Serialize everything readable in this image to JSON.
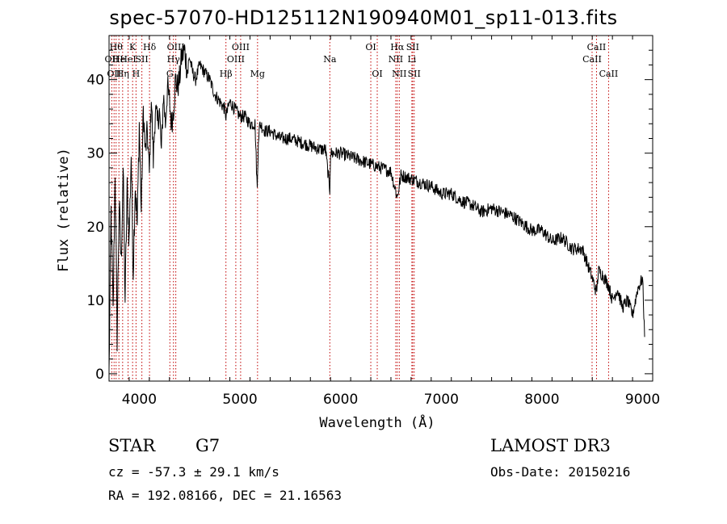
{
  "chart_data": {
    "type": "line",
    "title": "spec-57070-HD125112N190940M01_sp11-013.fits",
    "xlabel": "Wavelength (Å)",
    "ylabel": "Flux (relative)",
    "xlim": [
      3700,
      9100
    ],
    "ylim": [
      -1,
      46
    ],
    "xticks": [
      4000,
      5000,
      6000,
      7000,
      8000,
      9000
    ],
    "yticks": [
      0,
      10,
      20,
      30,
      40
    ],
    "series": [
      {
        "name": "flux",
        "x": [
          3700,
          3720,
          3740,
          3760,
          3780,
          3800,
          3820,
          3840,
          3860,
          3880,
          3900,
          3920,
          3940,
          3960,
          3980,
          4000,
          4020,
          4040,
          4060,
          4080,
          4100,
          4120,
          4140,
          4160,
          4180,
          4200,
          4220,
          4240,
          4260,
          4280,
          4300,
          4320,
          4340,
          4360,
          4380,
          4400,
          4420,
          4450,
          4480,
          4500,
          4530,
          4560,
          4600,
          4650,
          4700,
          4750,
          4800,
          4850,
          4861,
          4900,
          4950,
          5000,
          5050,
          5100,
          5150,
          5172,
          5183,
          5200,
          5250,
          5300,
          5400,
          5500,
          5600,
          5700,
          5800,
          5850,
          5893,
          5900,
          6000,
          6100,
          6200,
          6300,
          6400,
          6500,
          6563,
          6600,
          6700,
          6800,
          6900,
          7000,
          7100,
          7200,
          7300,
          7400,
          7500,
          7600,
          7700,
          7800,
          7900,
          8000,
          8100,
          8200,
          8300,
          8400,
          8450,
          8500,
          8542,
          8560,
          8600,
          8662,
          8700,
          8750,
          8800,
          8850,
          8900,
          8950,
          9000,
          9020
        ],
        "y": [
          0,
          22,
          8,
          28,
          5,
          23,
          15,
          28,
          10,
          25,
          18,
          30,
          14,
          26,
          20,
          34,
          22,
          36,
          30,
          33,
          27,
          38,
          29,
          36,
          34,
          36,
          30,
          38,
          34,
          39,
          37,
          34,
          36,
          40,
          39,
          40,
          43,
          44,
          41,
          43,
          41,
          40,
          42,
          41,
          40,
          38,
          37,
          36,
          35,
          37,
          36,
          35,
          35,
          34,
          34,
          25,
          32,
          34,
          33,
          33,
          32,
          32,
          31.5,
          31,
          30.5,
          30.5,
          25,
          30,
          30,
          29.5,
          29,
          28.5,
          28,
          27.5,
          24,
          27,
          26.5,
          26,
          25.5,
          24.5,
          24.5,
          23.5,
          23,
          22,
          22.5,
          22,
          21.5,
          20.5,
          19.5,
          19.5,
          18,
          18.5,
          17,
          17,
          15,
          13,
          11,
          14,
          13.5,
          12,
          10,
          11.5,
          9,
          10,
          8,
          11.5,
          13,
          5
        ]
      }
    ],
    "lines": [
      {
        "wl": 3727,
        "label": "OII",
        "row": 2
      },
      {
        "wl": 3750,
        "label": "OII",
        "row": 3
      },
      {
        "wl": 3770,
        "label": "Hθ",
        "row": 1
      },
      {
        "wl": 3798,
        "label": "He",
        "row": 2
      },
      {
        "wl": 3835,
        "label": "Hη",
        "row": 3
      },
      {
        "wl": 3889,
        "label": "HeI",
        "row": 2
      },
      {
        "wl": 3934,
        "label": "K",
        "row": 1
      },
      {
        "wl": 3968,
        "label": "H",
        "row": 3
      },
      {
        "wl": 4026,
        "label": "SII",
        "row": 2
      },
      {
        "wl": 4102,
        "label": "Hδ",
        "row": 1
      },
      {
        "wl": 4304,
        "label": "G",
        "row": 3
      },
      {
        "wl": 4340,
        "label": "Hγ",
        "row": 2
      },
      {
        "wl": 4363,
        "label": "OIII",
        "row": 1
      },
      {
        "wl": 4861,
        "label": "Hβ",
        "row": 3
      },
      {
        "wl": 4959,
        "label": "OIII",
        "row": 2
      },
      {
        "wl": 5007,
        "label": "OIII",
        "row": 1
      },
      {
        "wl": 5175,
        "label": "Mg",
        "row": 3
      },
      {
        "wl": 5893,
        "label": "Na",
        "row": 2
      },
      {
        "wl": 6300,
        "label": "OI",
        "row": 1
      },
      {
        "wl": 6364,
        "label": "OI",
        "row": 3
      },
      {
        "wl": 6548,
        "label": "NII",
        "row": 2
      },
      {
        "wl": 6563,
        "label": "Hα",
        "row": 1
      },
      {
        "wl": 6583,
        "label": "NII",
        "row": 3
      },
      {
        "wl": 6708,
        "label": "Li",
        "row": 2
      },
      {
        "wl": 6716,
        "label": "SII",
        "row": 1
      },
      {
        "wl": 6731,
        "label": "SII",
        "row": 3
      },
      {
        "wl": 8498,
        "label": "CaII",
        "row": 2
      },
      {
        "wl": 8542,
        "label": "CaII",
        "row": 1
      },
      {
        "wl": 8662,
        "label": "CaII",
        "row": 3
      }
    ]
  },
  "info": {
    "object_class": "STAR",
    "subclass": "G7",
    "survey": "LAMOST DR3",
    "redshift": "cz = -57.3 ± 29.1 km/s",
    "obs_date": "Obs-Date: 20150216",
    "coords": "RA = 192.08166, DEC =  21.16563"
  }
}
